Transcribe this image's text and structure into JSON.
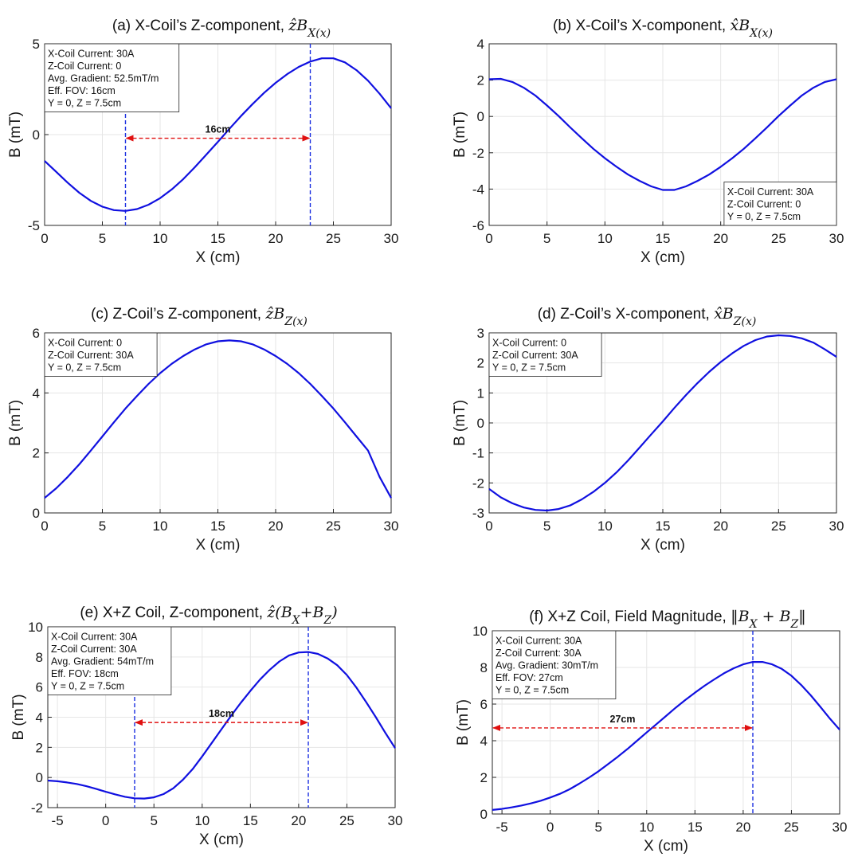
{
  "chart_data": [
    {
      "id": "a",
      "type": "line",
      "title_text": "(a) X-Coil’s Z-component, ",
      "title_math": "ẑB",
      "title_sub": "X(x)",
      "xlabel": "X (cm)",
      "ylabel": "B (mT)",
      "xlim": [
        0,
        30
      ],
      "ylim": [
        -5,
        5
      ],
      "xticks": [
        0,
        5,
        10,
        15,
        20,
        25,
        30
      ],
      "yticks": [
        -5,
        0,
        5
      ],
      "grid": true,
      "line_color": "#1010e0",
      "series": [
        {
          "x": [
            0,
            1,
            2,
            3,
            4,
            5,
            6,
            7,
            8,
            9,
            10,
            11,
            12,
            13,
            14,
            15,
            16,
            17,
            18,
            19,
            20,
            21,
            22,
            23,
            24,
            25,
            26,
            27,
            28,
            29,
            30
          ],
          "values": [
            -1.45,
            -2.05,
            -2.65,
            -3.2,
            -3.65,
            -3.97,
            -4.16,
            -4.2,
            -4.1,
            -3.86,
            -3.5,
            -3.02,
            -2.45,
            -1.8,
            -1.1,
            -0.4,
            0.32,
            1.02,
            1.68,
            2.3,
            2.85,
            3.33,
            3.73,
            4.02,
            4.2,
            4.2,
            3.98,
            3.55,
            2.97,
            2.25,
            1.45
          ]
        }
      ],
      "vlines": [
        7,
        23
      ],
      "span": {
        "from": 7,
        "to": 23,
        "y": -0.2,
        "label": "16cm"
      },
      "notes_pos": "top-left",
      "notes": [
        "X-Coil Current: 30A",
        "Z-Coil Current: 0",
        "Avg. Gradient: 52.5mT/m",
        "Eff. FOV: 16cm",
        "Y = 0, Z = 7.5cm"
      ]
    },
    {
      "id": "b",
      "type": "line",
      "title_text": "(b) X-Coil’s X-component, ",
      "title_math": "x̂B",
      "title_sub": "X(x)",
      "xlabel": "X (cm)",
      "ylabel": "B (mT)",
      "xlim": [
        0,
        30
      ],
      "ylim": [
        -6,
        4
      ],
      "xticks": [
        0,
        5,
        10,
        15,
        20,
        25,
        30
      ],
      "yticks": [
        -6,
        -4,
        -2,
        0,
        2,
        4
      ],
      "grid": true,
      "line_color": "#1010e0",
      "series": [
        {
          "x": [
            0,
            1,
            2,
            3,
            4,
            5,
            6,
            7,
            8,
            9,
            10,
            11,
            12,
            13,
            14,
            15,
            16,
            17,
            18,
            19,
            20,
            21,
            22,
            23,
            24,
            25,
            26,
            27,
            28,
            29,
            30
          ],
          "values": [
            2.05,
            2.07,
            1.9,
            1.58,
            1.15,
            0.6,
            0.02,
            -0.6,
            -1.2,
            -1.78,
            -2.3,
            -2.77,
            -3.2,
            -3.55,
            -3.85,
            -4.05,
            -4.05,
            -3.85,
            -3.55,
            -3.2,
            -2.77,
            -2.3,
            -1.78,
            -1.2,
            -0.6,
            0.02,
            0.6,
            1.15,
            1.58,
            1.9,
            2.05
          ]
        }
      ],
      "vlines": [],
      "span": null,
      "notes_pos": "bottom-right",
      "notes": [
        "X-Coil Current: 30A",
        "Z-Coil Current: 0",
        "Y = 0, Z = 7.5cm"
      ]
    },
    {
      "id": "c",
      "type": "line",
      "title_text": "(c) Z-Coil’s Z-component, ",
      "title_math": "ẑB",
      "title_sub": "Z(x)",
      "xlabel": "X (cm)",
      "ylabel": "B (mT)",
      "xlim": [
        0,
        30
      ],
      "ylim": [
        0,
        6
      ],
      "xticks": [
        0,
        5,
        10,
        15,
        20,
        25,
        30
      ],
      "yticks": [
        0,
        2,
        4,
        6
      ],
      "grid": true,
      "line_color": "#1010e0",
      "series": [
        {
          "x": [
            0,
            1,
            2,
            3,
            4,
            5,
            6,
            7,
            8,
            9,
            10,
            11,
            12,
            13,
            14,
            15,
            16,
            17,
            18,
            19,
            20,
            21,
            22,
            23,
            24,
            25,
            26,
            27,
            28,
            29,
            30
          ],
          "values": [
            0.5,
            0.82,
            1.2,
            1.62,
            2.08,
            2.55,
            3.02,
            3.48,
            3.9,
            4.3,
            4.66,
            4.97,
            5.23,
            5.45,
            5.62,
            5.72,
            5.75,
            5.72,
            5.62,
            5.45,
            5.23,
            4.97,
            4.66,
            4.3,
            3.9,
            3.48,
            3.02,
            2.55,
            2.08,
            1.2,
            0.5
          ]
        }
      ],
      "vlines": [],
      "span": null,
      "notes_pos": "top-left",
      "notes": [
        "X-Coil Current: 0",
        "Z-Coil Current: 30A",
        "Y = 0, Z = 7.5cm"
      ]
    },
    {
      "id": "d",
      "type": "line",
      "title_text": "(d) Z-Coil’s X-component, ",
      "title_math": "x̂B",
      "title_sub": "Z(x)",
      "xlabel": "X (cm)",
      "ylabel": "B (mT)",
      "xlim": [
        0,
        30
      ],
      "ylim": [
        -3,
        3
      ],
      "xticks": [
        0,
        5,
        10,
        15,
        20,
        25,
        30
      ],
      "yticks": [
        -3,
        -2,
        -1,
        0,
        1,
        2,
        3
      ],
      "grid": true,
      "line_color": "#1010e0",
      "series": [
        {
          "x": [
            0,
            1,
            2,
            3,
            4,
            5,
            6,
            7,
            8,
            9,
            10,
            11,
            12,
            13,
            14,
            15,
            16,
            17,
            18,
            19,
            20,
            21,
            22,
            23,
            24,
            25,
            26,
            27,
            28,
            29,
            30
          ],
          "values": [
            -2.2,
            -2.48,
            -2.68,
            -2.82,
            -2.9,
            -2.92,
            -2.87,
            -2.75,
            -2.55,
            -2.3,
            -2.0,
            -1.65,
            -1.25,
            -0.82,
            -0.38,
            0.05,
            0.5,
            0.93,
            1.33,
            1.7,
            2.03,
            2.32,
            2.57,
            2.76,
            2.88,
            2.92,
            2.9,
            2.82,
            2.68,
            2.45,
            2.2
          ]
        }
      ],
      "vlines": [],
      "span": null,
      "notes_pos": "top-left",
      "notes": [
        "X-Coil Current: 0",
        "Z-Coil Current: 30A",
        "Y = 0, Z = 7.5cm"
      ]
    },
    {
      "id": "e",
      "type": "line",
      "title_text": "(e) X+Z Coil, Z-component, ",
      "title_math": "ẑ(B",
      "title_sub": "X",
      "title_math2": "+B",
      "title_sub2": "Z",
      "title_math3": ")",
      "xlabel": "X (cm)",
      "ylabel": "B (mT)",
      "xlim": [
        -6,
        30
      ],
      "ylim": [
        -2,
        10
      ],
      "xticks": [
        -5,
        0,
        5,
        10,
        15,
        20,
        25,
        30
      ],
      "yticks": [
        -2,
        0,
        2,
        4,
        6,
        8,
        10
      ],
      "grid": true,
      "line_color": "#1010e0",
      "series": [
        {
          "x": [
            -6,
            -5,
            -4,
            -3,
            -2,
            -1,
            0,
            1,
            2,
            3,
            4,
            5,
            6,
            7,
            8,
            9,
            10,
            11,
            12,
            13,
            14,
            15,
            16,
            17,
            18,
            19,
            20,
            21,
            22,
            23,
            24,
            25,
            26,
            27,
            28,
            29,
            30
          ],
          "values": [
            -0.2,
            -0.25,
            -0.33,
            -0.43,
            -0.58,
            -0.75,
            -0.95,
            -1.12,
            -1.28,
            -1.38,
            -1.4,
            -1.32,
            -1.1,
            -0.72,
            -0.15,
            0.55,
            1.4,
            2.3,
            3.2,
            4.1,
            4.95,
            5.75,
            6.5,
            7.15,
            7.7,
            8.1,
            8.3,
            8.33,
            8.2,
            7.9,
            7.45,
            6.8,
            5.95,
            5.0,
            4.0,
            2.95,
            1.95
          ]
        }
      ],
      "vlines": [
        3,
        21
      ],
      "span": {
        "from": 3,
        "to": 21,
        "y": 3.65,
        "label": "18cm"
      },
      "notes_pos": "top-left",
      "notes": [
        "X-Coil Current: 30A",
        "Z-Coil Current: 30A",
        "Avg. Gradient: 54mT/m",
        "Eff. FOV: 18cm",
        "Y = 0, Z = 7.5cm"
      ]
    },
    {
      "id": "f",
      "type": "line",
      "title_text": "(f) X+Z Coil, Field Magnitude, ",
      "title_math": "‖B",
      "title_sub": "X",
      "title_math2": " + B",
      "title_sub2": "Z",
      "title_math3": "‖",
      "xlabel": "X (cm)",
      "ylabel": "B (mT)",
      "xlim": [
        -6,
        30
      ],
      "ylim": [
        0,
        10
      ],
      "xticks": [
        -5,
        0,
        5,
        10,
        15,
        20,
        25,
        30
      ],
      "yticks": [
        0,
        2,
        4,
        6,
        8,
        10
      ],
      "grid": true,
      "line_color": "#1010e0",
      "series": [
        {
          "x": [
            -6,
            -5,
            -4,
            -3,
            -2,
            -1,
            0,
            1,
            2,
            3,
            4,
            5,
            6,
            7,
            8,
            9,
            10,
            11,
            12,
            13,
            14,
            15,
            16,
            17,
            18,
            19,
            20,
            21,
            22,
            23,
            24,
            25,
            26,
            27,
            28,
            29,
            30
          ],
          "values": [
            0.22,
            0.28,
            0.36,
            0.46,
            0.58,
            0.72,
            0.9,
            1.1,
            1.35,
            1.65,
            1.98,
            2.33,
            2.72,
            3.12,
            3.55,
            4.0,
            4.45,
            4.9,
            5.35,
            5.8,
            6.22,
            6.62,
            7.0,
            7.35,
            7.68,
            7.95,
            8.17,
            8.3,
            8.3,
            8.17,
            7.92,
            7.55,
            7.05,
            6.48,
            5.85,
            5.2,
            4.6
          ]
        }
      ],
      "vlines": [
        21
      ],
      "span": {
        "from": -6,
        "to": 21,
        "y": 4.7,
        "label": "27cm"
      },
      "notes_pos": "top-left",
      "notes": [
        "X-Coil Current: 30A",
        "Z-Coil Current: 30A",
        "Avg. Gradient: 30mT/m",
        "Eff. FOV: 27cm",
        "Y = 0, Z = 7.5cm"
      ]
    }
  ]
}
